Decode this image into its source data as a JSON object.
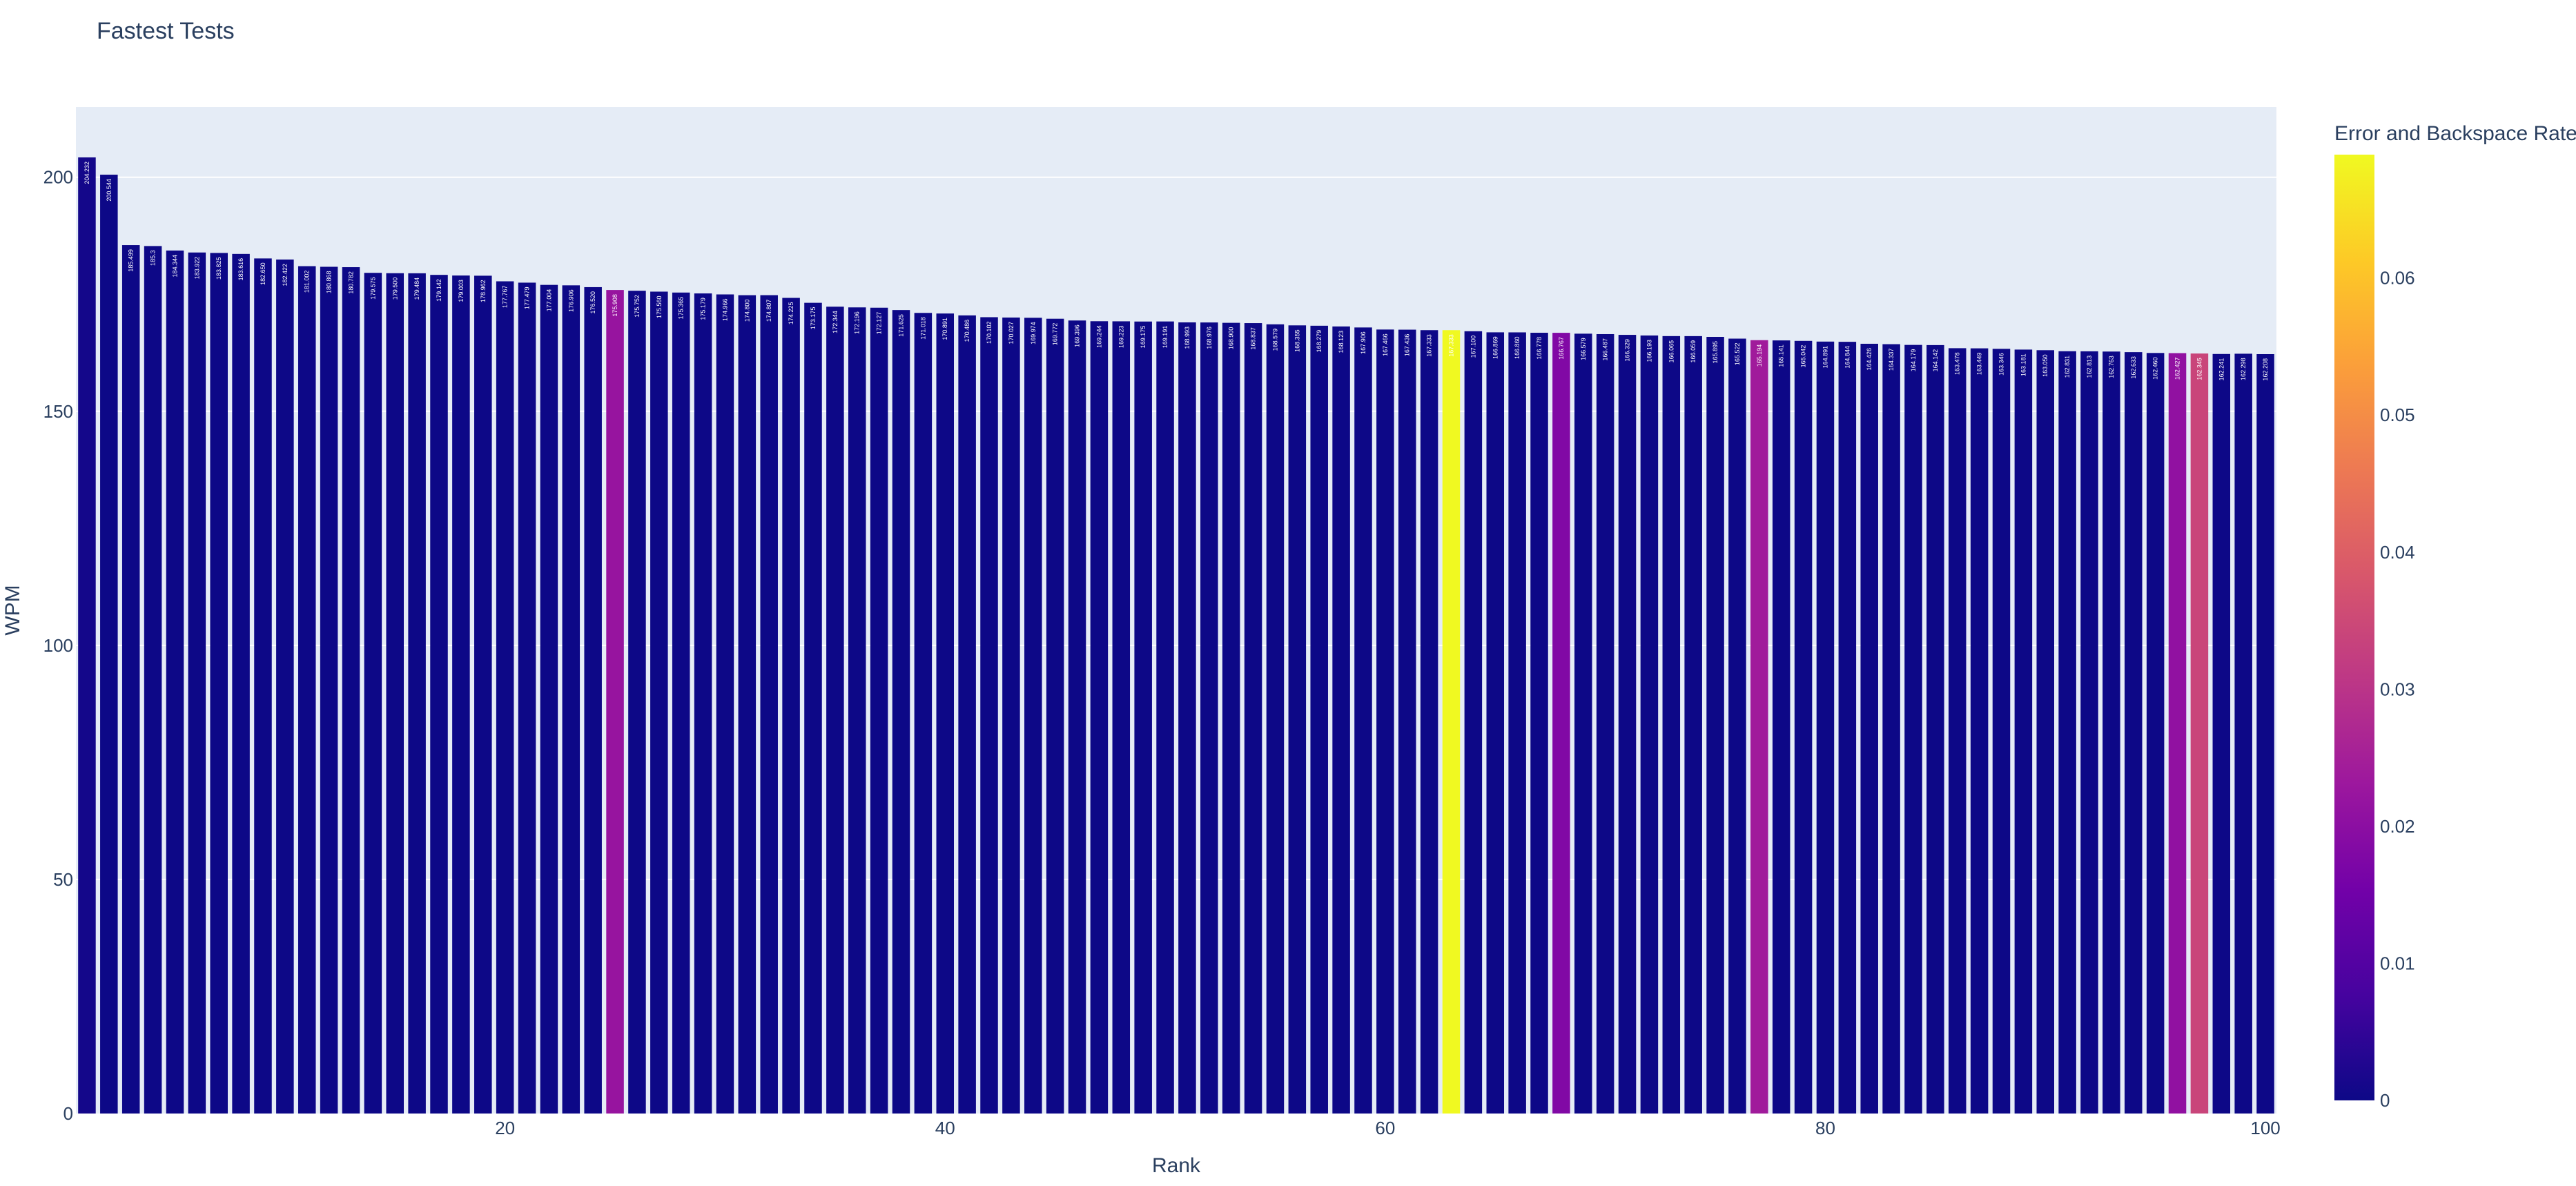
{
  "chart_data": {
    "type": "bar",
    "title": "Fastest Tests",
    "xlabel": "Rank",
    "ylabel": "WPM",
    "xlim": [
      0.5,
      100.5
    ],
    "ylim": [
      0,
      215
    ],
    "x_ticks": [
      20,
      40,
      60,
      80,
      100
    ],
    "y_ticks": [
      0,
      50,
      100,
      150,
      200
    ],
    "grid": true,
    "plot_background": "#e5ecf6",
    "colorbar": {
      "title": "Error and Backspace Rate",
      "range": [
        0,
        0.069
      ],
      "ticks": [
        0,
        0.01,
        0.02,
        0.03,
        0.04,
        0.05,
        0.06
      ],
      "tick_labels": [
        "0",
        "0.01",
        "0.02",
        "0.03",
        "0.04",
        "0.05",
        "0.06"
      ],
      "colorscale": [
        "#0d0887",
        "#46039f",
        "#7201a8",
        "#9c179e",
        "#bd3786",
        "#d8576b",
        "#ed7953",
        "#fb9f3a",
        "#fdca26",
        "#f0f921"
      ]
    },
    "x": [
      1,
      2,
      3,
      4,
      5,
      6,
      7,
      8,
      9,
      10,
      11,
      12,
      13,
      14,
      15,
      16,
      17,
      18,
      19,
      20,
      21,
      22,
      23,
      24,
      25,
      26,
      27,
      28,
      29,
      30,
      31,
      32,
      33,
      34,
      35,
      36,
      37,
      38,
      39,
      40,
      41,
      42,
      43,
      44,
      45,
      46,
      47,
      48,
      49,
      50,
      51,
      52,
      53,
      54,
      55,
      56,
      57,
      58,
      59,
      60,
      61,
      62,
      63,
      64,
      65,
      66,
      67,
      68,
      69,
      70,
      71,
      72,
      73,
      74,
      75,
      76,
      77,
      78,
      79,
      80,
      81,
      82,
      83,
      84,
      85,
      86,
      87,
      88,
      89,
      90,
      91,
      92,
      93,
      94,
      95,
      96,
      97,
      98,
      99,
      100
    ],
    "values": [
      204.232,
      200.544,
      185.499,
      185.3,
      184.344,
      183.922,
      183.825,
      183.616,
      182.65,
      182.422,
      181.002,
      180.868,
      180.782,
      179.575,
      179.5,
      179.484,
      179.142,
      179.003,
      178.962,
      177.767,
      177.479,
      177.004,
      176.906,
      176.52,
      175.908,
      175.752,
      175.56,
      175.365,
      175.179,
      174.966,
      174.8,
      174.807,
      174.225,
      173.175,
      172.344,
      172.196,
      172.127,
      171.625,
      171.018,
      170.891,
      170.486,
      170.102,
      170.027,
      169.974,
      169.772,
      169.396,
      169.244,
      169.223,
      169.175,
      169.191,
      168.993,
      168.976,
      168.9,
      168.837,
      168.579,
      168.355,
      168.279,
      168.123,
      167.906,
      167.466,
      167.436,
      167.333,
      167.333,
      167.1,
      166.869,
      166.86,
      166.778,
      166.767,
      166.579,
      166.487,
      166.329,
      166.193,
      166.065,
      166.059,
      165.895,
      165.522,
      165.194,
      165.141,
      165.042,
      164.891,
      164.844,
      164.426,
      164.337,
      164.179,
      164.142,
      163.478,
      163.449,
      163.346,
      163.181,
      163.05,
      162.831,
      162.813,
      162.763,
      162.633,
      162.46,
      162.427,
      162.345,
      162.241,
      162.298,
      162.208
    ],
    "bar_labels": [
      "204.232",
      "200.544",
      "185.499",
      "185.3",
      "184.344",
      "183.922",
      "183.825",
      "183.616",
      "182.650",
      "182.422",
      "181.002",
      "180.868",
      "180.782",
      "179.575",
      "179.500",
      "179.484",
      "179.142",
      "179.003",
      "178.962",
      "177.767",
      "177.479",
      "177.004",
      "176.906",
      "176.520",
      "175.908",
      "175.752",
      "175.560",
      "175.365",
      "175.179",
      "174.966",
      "174.800",
      "174.807",
      "174.225",
      "173.175",
      "172.344",
      "172.196",
      "172.127",
      "171.625",
      "171.018",
      "170.891",
      "170.486",
      "170.102",
      "170.027",
      "169.974",
      "169.772",
      "169.396",
      "169.244",
      "169.223",
      "169.175",
      "169.191",
      "168.993",
      "168.976",
      "168.900",
      "168.837",
      "168.579",
      "168.355",
      "168.279",
      "168.123",
      "167.906",
      "167.466",
      "167.436",
      "167.333",
      "167.333",
      "167.100",
      "166.869",
      "166.860",
      "166.778",
      "166.767",
      "166.579",
      "166.487",
      "166.329",
      "166.193",
      "166.065",
      "166.059",
      "165.895",
      "165.522",
      "165.194",
      "165.141",
      "165.042",
      "164.891",
      "164.844",
      "164.426",
      "164.337",
      "164.179",
      "164.142",
      "163.478",
      "163.449",
      "163.346",
      "163.181",
      "163.050",
      "162.831",
      "162.813",
      "162.763",
      "162.633",
      "162.460",
      "162.427",
      "162.345",
      "162.241",
      "162.298",
      "162.208"
    ],
    "color_values": [
      0.001,
      0,
      0,
      0,
      0,
      0,
      0,
      0,
      0,
      0,
      0,
      0,
      0,
      0,
      0,
      0,
      0,
      0,
      0,
      0,
      0,
      0,
      0,
      0,
      0.022,
      0,
      0,
      0,
      0,
      0,
      0,
      0,
      0,
      0,
      0,
      0,
      0,
      0,
      0,
      0,
      0,
      0,
      0,
      0,
      0,
      0,
      0,
      0,
      0,
      0,
      0,
      0,
      0,
      0,
      0,
      0,
      0,
      0,
      0,
      0,
      0,
      0,
      0.069,
      0,
      0,
      0,
      0,
      0.018,
      0,
      0,
      0,
      0,
      0,
      0,
      0,
      0,
      0.024,
      0,
      0,
      0,
      0,
      0,
      0,
      0,
      0,
      0,
      0,
      0,
      0,
      0,
      0,
      0,
      0,
      0,
      0,
      0.021,
      0.034,
      0,
      0,
      0
    ]
  }
}
